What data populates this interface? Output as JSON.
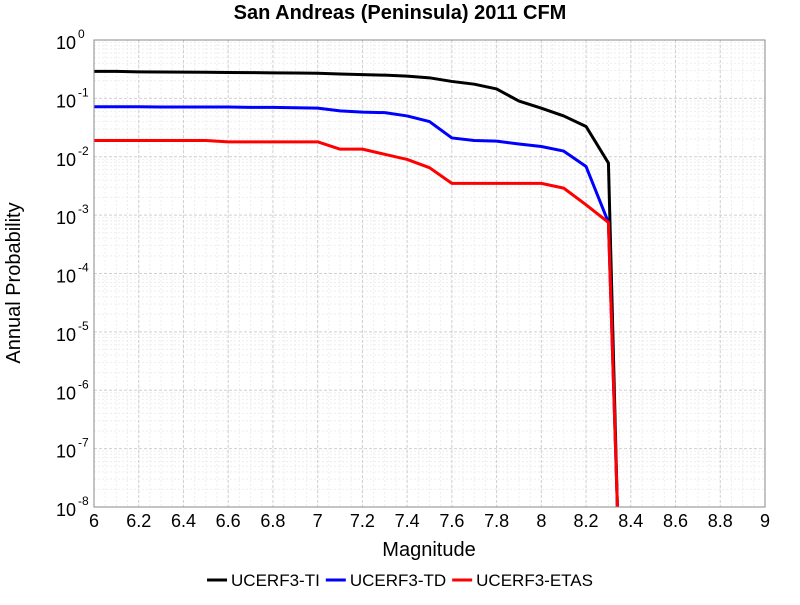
{
  "chart_data": {
    "type": "line",
    "title": "San Andreas (Peninsula) 2011 CFM",
    "xlabel": "Magnitude",
    "ylabel": "Annual Probability",
    "xlim": [
      6,
      9
    ],
    "ylim": [
      1e-08,
      1
    ],
    "yscale": "log",
    "grid": true,
    "legend_position": "bottom",
    "x_ticks": [
      "6",
      "6.2",
      "6.4",
      "6.6",
      "6.8",
      "7",
      "7.2",
      "7.4",
      "7.6",
      "7.8",
      "8",
      "8.2",
      "8.4",
      "8.6",
      "8.8",
      "9"
    ],
    "y_ticks": [
      {
        "value": 1,
        "base": "10",
        "exp": "0"
      },
      {
        "value": 0.1,
        "base": "10",
        "exp": "-1"
      },
      {
        "value": 0.01,
        "base": "10",
        "exp": "-2"
      },
      {
        "value": 0.001,
        "base": "10",
        "exp": "-3"
      },
      {
        "value": 0.0001,
        "base": "10",
        "exp": "-4"
      },
      {
        "value": 1e-05,
        "base": "10",
        "exp": "-5"
      },
      {
        "value": 1e-06,
        "base": "10",
        "exp": "-6"
      },
      {
        "value": 1e-07,
        "base": "10",
        "exp": "-7"
      },
      {
        "value": 1e-08,
        "base": "10",
        "exp": "-8"
      }
    ],
    "series": [
      {
        "name": "UCERF3-TI",
        "color": "#000000",
        "x": [
          6.0,
          6.1,
          6.2,
          6.3,
          6.4,
          6.5,
          6.6,
          6.7,
          6.8,
          6.9,
          7.0,
          7.1,
          7.2,
          7.3,
          7.4,
          7.5,
          7.6,
          7.7,
          7.8,
          7.9,
          8.0,
          8.1,
          8.2,
          8.3,
          8.34
        ],
        "y": [
          0.29,
          0.29,
          0.285,
          0.283,
          0.282,
          0.28,
          0.278,
          0.276,
          0.274,
          0.272,
          0.27,
          0.262,
          0.255,
          0.25,
          0.24,
          0.225,
          0.195,
          0.175,
          0.145,
          0.09,
          0.068,
          0.05,
          0.033,
          0.0078,
          1e-08
        ]
      },
      {
        "name": "UCERF3-TD",
        "color": "#0000ff",
        "x": [
          6.0,
          6.1,
          6.2,
          6.3,
          6.4,
          6.5,
          6.6,
          6.7,
          6.8,
          6.9,
          7.0,
          7.1,
          7.2,
          7.3,
          7.4,
          7.5,
          7.6,
          7.7,
          7.8,
          7.9,
          8.0,
          8.1,
          8.2,
          8.3,
          8.34
        ],
        "y": [
          0.072,
          0.072,
          0.072,
          0.071,
          0.071,
          0.071,
          0.071,
          0.07,
          0.07,
          0.069,
          0.068,
          0.061,
          0.058,
          0.057,
          0.05,
          0.04,
          0.021,
          0.019,
          0.0185,
          0.0165,
          0.015,
          0.0125,
          0.0068,
          0.00075,
          1e-08
        ]
      },
      {
        "name": "UCERF3-ETAS",
        "color": "#ff0000",
        "x": [
          6.0,
          6.1,
          6.2,
          6.3,
          6.4,
          6.5,
          6.6,
          6.7,
          6.8,
          6.9,
          7.0,
          7.1,
          7.2,
          7.3,
          7.4,
          7.5,
          7.6,
          7.7,
          7.8,
          7.9,
          8.0,
          8.1,
          8.2,
          8.3,
          8.34
        ],
        "y": [
          0.019,
          0.019,
          0.019,
          0.019,
          0.019,
          0.019,
          0.018,
          0.018,
          0.018,
          0.018,
          0.018,
          0.0135,
          0.0135,
          0.011,
          0.009,
          0.0065,
          0.0035,
          0.0035,
          0.0035,
          0.0035,
          0.0035,
          0.0029,
          0.0015,
          0.00075,
          1e-08
        ]
      }
    ]
  }
}
